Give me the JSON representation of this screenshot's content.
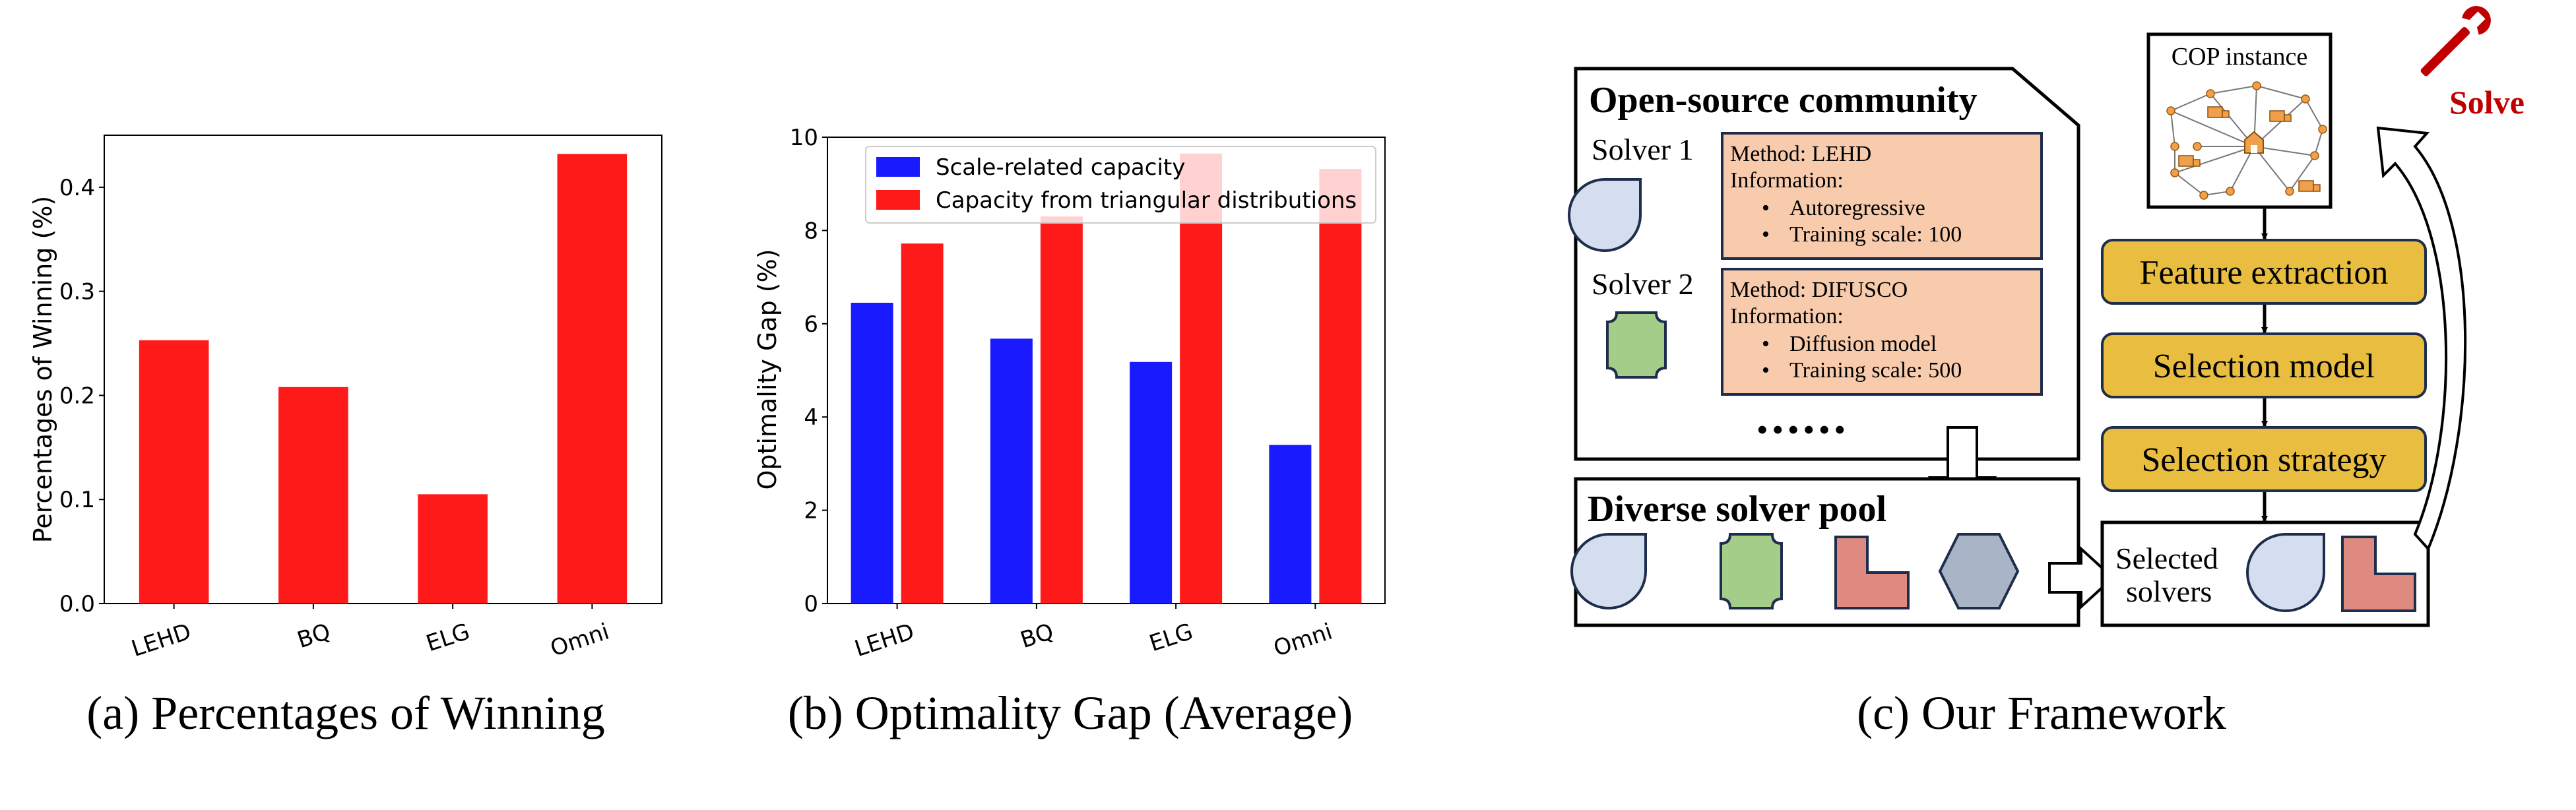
{
  "chart_data": [
    {
      "type": "bar",
      "categories": [
        "LEHD",
        "BQ",
        "ELG",
        "Omni"
      ],
      "values": [
        0.253,
        0.208,
        0.105,
        0.432
      ],
      "color": "#ff1a1a",
      "ylabel": "Percentages of Winning (%)",
      "ylim": [
        0,
        0.45
      ],
      "yticks": [
        "0.0",
        "0.1",
        "0.2",
        "0.3",
        "0.4"
      ],
      "ytick_values": [
        0,
        0.1,
        0.2,
        0.3,
        0.4
      ],
      "caption": "(a) Percentages of Winning"
    },
    {
      "type": "bar",
      "categories": [
        "LEHD",
        "BQ",
        "ELG",
        "Omni"
      ],
      "series": [
        {
          "name": "Scale-related capacity",
          "color": "#1a1aff",
          "values": [
            6.45,
            5.68,
            5.18,
            3.4
          ]
        },
        {
          "name": "Capacity from triangular distributions",
          "color": "#ff1a1a",
          "values": [
            7.72,
            8.3,
            9.65,
            9.32
          ]
        }
      ],
      "ylabel": "Optimality Gap (%)",
      "ylim": [
        0,
        10
      ],
      "yticks": [
        "0",
        "2",
        "4",
        "6",
        "8",
        "10"
      ],
      "ytick_values": [
        0,
        2,
        4,
        6,
        8,
        10
      ],
      "caption": "(b) Optimality Gap (Average)"
    }
  ],
  "framework": {
    "caption": "(c) Our Framework",
    "community": {
      "title": "Open-source community",
      "solver1": {
        "label": "Solver 1",
        "method": "Method: LEHD",
        "info": "Information:",
        "bullets": [
          "Autoregressive",
          "Training scale: 100"
        ]
      },
      "solver2": {
        "label": "Solver 2",
        "method": "Method: DIFUSCO",
        "info": "Information:",
        "bullets": [
          "Diffusion model",
          "Training scale: 500"
        ]
      },
      "ellipsis": "••••••"
    },
    "pool": {
      "title": "Diverse solver pool"
    },
    "cop_instance": "COP instance",
    "solve": "Solve",
    "steps": [
      "Feature extraction",
      "Selection model",
      "Selection strategy"
    ],
    "selected": [
      "Selected",
      "solvers"
    ],
    "colors": {
      "drop": "#d4deef",
      "octagon": "#a5cd8a",
      "lshape": "#df8a80",
      "hexagon": "#a9b5c7",
      "solver_box": "#f8cbad",
      "pill": "#e8bd40",
      "solve": "#c00000"
    }
  }
}
